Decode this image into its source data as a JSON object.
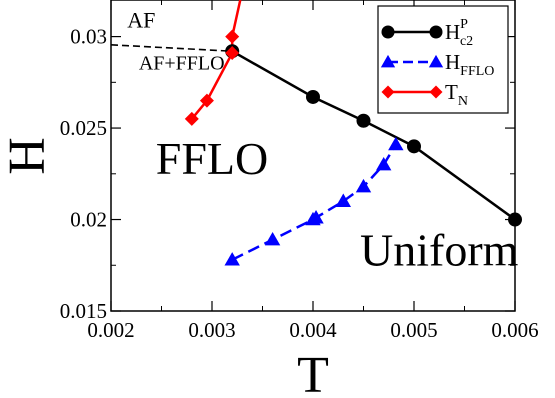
{
  "chart_data": {
    "type": "line",
    "xlabel": "T",
    "ylabel": "H",
    "xlim": [
      0.002,
      0.006
    ],
    "ylim": [
      0.015,
      0.032
    ],
    "x_ticks": [
      {
        "value": 0.002,
        "label": "0.002"
      },
      {
        "value": 0.003,
        "label": "0.003"
      },
      {
        "value": 0.004,
        "label": "0.004"
      },
      {
        "value": 0.005,
        "label": "0.005"
      },
      {
        "value": 0.006,
        "label": "0.006"
      }
    ],
    "y_ticks": [
      {
        "value": 0.015,
        "label": "0.015"
      },
      {
        "value": 0.02,
        "label": "0.02"
      },
      {
        "value": 0.025,
        "label": "0.025"
      },
      {
        "value": 0.03,
        "label": "0.03"
      }
    ],
    "series": [
      {
        "id": "hc2",
        "legend": {
          "base": "H",
          "sup": "P",
          "sub": "c2"
        },
        "color": "#000000",
        "marker": "circle",
        "dash": "solid",
        "x": [
          0.0032,
          0.004,
          0.0045,
          0.005,
          0.006
        ],
        "y": [
          0.0292,
          0.0267,
          0.0254,
          0.024,
          0.02
        ]
      },
      {
        "id": "hfflo",
        "legend": {
          "base": "H",
          "sup": "",
          "sub": "FFLO"
        },
        "color": "#0000ff",
        "marker": "triangle",
        "dash": "dashed",
        "x": [
          0.0032,
          0.0036,
          0.004,
          0.00403,
          0.0043,
          0.0045,
          0.0047,
          0.00482
        ],
        "y": [
          0.0178,
          0.0189,
          0.02,
          0.0201,
          0.021,
          0.0218,
          0.023,
          0.0241
        ]
      },
      {
        "id": "tn",
        "legend": {
          "base": "T",
          "sup": "",
          "sub": "N"
        },
        "color": "#ff0000",
        "marker": "diamond",
        "dash": "solid",
        "x": [
          0.0028,
          0.00295,
          0.0032,
          0.0032
        ],
        "y": [
          0.0255,
          0.0265,
          0.0291,
          0.03
        ],
        "line_extension_to": {
          "x": 0.00328,
          "y": 0.032
        }
      },
      {
        "id": "af_boundary",
        "legend": null,
        "color": "#000000",
        "marker": "none",
        "dash": "dashed",
        "x": [
          0.002,
          0.0032
        ],
        "y": [
          0.02955,
          0.0292
        ]
      }
    ],
    "region_labels": [
      {
        "text": "AF",
        "x": 0.0023,
        "y": 0.0305,
        "size": "small"
      },
      {
        "text": "AF+FFLO",
        "x": 0.0027,
        "y": 0.0282,
        "size": "small"
      },
      {
        "text": "FFLO",
        "x": 0.003,
        "y": 0.0225,
        "size": "large"
      },
      {
        "text": "Uniform",
        "x": 0.00525,
        "y": 0.0175,
        "size": "large"
      }
    ],
    "legend_position": "top-right",
    "grid": false
  }
}
